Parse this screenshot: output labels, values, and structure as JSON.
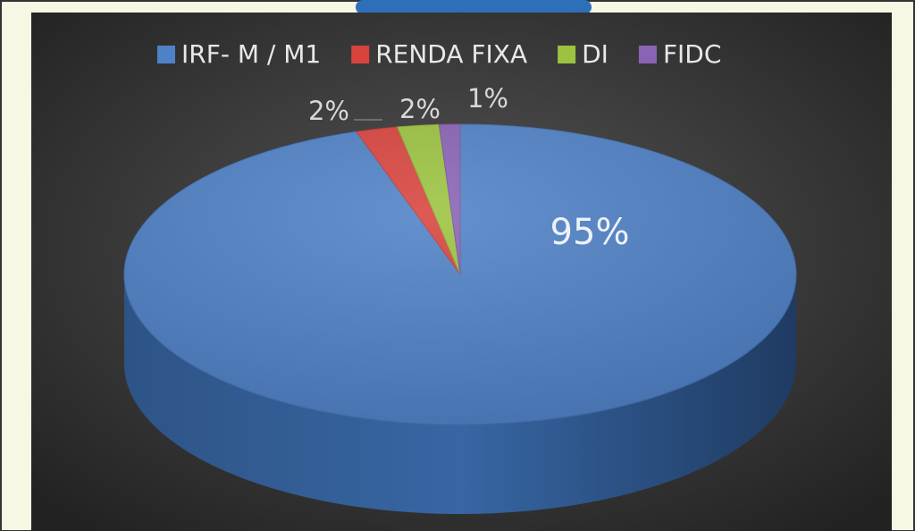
{
  "chart_data": {
    "type": "pie",
    "categories": [
      "IRF- M / M1",
      "RENDA FIXA",
      "DI",
      "FIDC"
    ],
    "values": [
      95,
      2,
      2,
      1
    ],
    "value_labels": [
      "95%",
      "2%",
      "2%",
      "1%"
    ],
    "colors": [
      "#4f81c7",
      "#d8433d",
      "#9cc33f",
      "#8a63b5"
    ],
    "legend": "top"
  }
}
